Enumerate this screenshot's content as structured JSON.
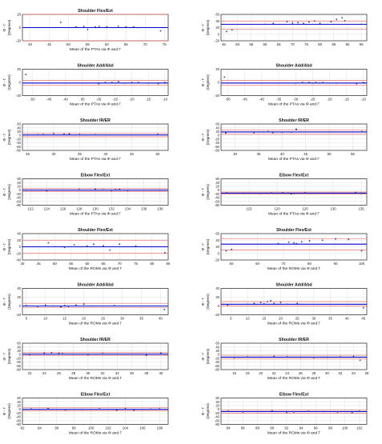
{
  "chart_data": [
    {
      "type": "scatter",
      "title": "Shoulder Flex/Ext",
      "xlabel": "Mean of the PTAs via Φ and Γ",
      "ylabel": "(Degrees)",
      "ysub": "Φ - Γ",
      "xlim": [
        38,
        76
      ],
      "xticks": [
        40,
        45,
        50,
        55,
        60,
        65,
        70,
        75
      ],
      "ylim": [
        -20,
        20
      ],
      "yticks": [
        -20,
        0,
        20
      ],
      "mean": 0,
      "loa": [
        20,
        -20
      ],
      "points": [
        [
          42,
          0
        ],
        [
          48,
          8
        ],
        [
          52,
          1
        ],
        [
          54,
          2
        ],
        [
          55,
          -3
        ],
        [
          57,
          1
        ],
        [
          58,
          2
        ],
        [
          60,
          1
        ],
        [
          62,
          0
        ],
        [
          63,
          2
        ],
        [
          65,
          1
        ],
        [
          67,
          1
        ],
        [
          68,
          0
        ],
        [
          74,
          -5
        ]
      ]
    },
    {
      "type": "scatter",
      "title": "",
      "xlabel": "",
      "ylabel": "(Degrees)",
      "ysub": "Φ - Γ",
      "xlim": [
        44,
        97
      ],
      "xticks": [
        45,
        50,
        55,
        60,
        65,
        70,
        75,
        80,
        85,
        90,
        95
      ],
      "ylim": [
        -20,
        60
      ],
      "yticks": [
        -20,
        0,
        20,
        40,
        60
      ],
      "mean": 30,
      "loa": [
        40,
        15
      ],
      "points": [
        [
          46,
          8
        ],
        [
          48,
          13
        ],
        [
          60,
          30
        ],
        [
          63,
          33
        ],
        [
          68,
          38
        ],
        [
          70,
          34
        ],
        [
          72,
          35
        ],
        [
          74,
          33
        ],
        [
          76,
          37
        ],
        [
          78,
          40
        ],
        [
          80,
          33
        ],
        [
          84,
          38
        ],
        [
          86,
          45
        ],
        [
          88,
          50
        ],
        [
          89,
          41
        ],
        [
          95,
          30
        ]
      ]
    },
    {
      "type": "scatter",
      "title": "Shoulder Add/Abd",
      "xlabel": "Mean of the PTAs via Φ and Γ",
      "ylabel": "(Degrees)",
      "ysub": "Φ - Γ",
      "xlim": [
        -53,
        -9
      ],
      "xticks": [
        -50,
        -45,
        -40,
        -35,
        -30,
        -25,
        -20,
        -15,
        -10
      ],
      "ylim": [
        -20,
        20
      ],
      "yticks": [
        -20,
        0,
        20
      ],
      "mean": -1,
      "loa": [
        3,
        -4
      ],
      "points": [
        [
          -52,
          12
        ],
        [
          -30,
          -2
        ],
        [
          -28,
          0
        ],
        [
          -26,
          0
        ],
        [
          -24,
          1
        ],
        [
          -22,
          -1
        ],
        [
          -20,
          0
        ],
        [
          -18,
          0
        ],
        [
          -15,
          -1
        ],
        [
          -12,
          -2
        ],
        [
          -10,
          0
        ]
      ]
    },
    {
      "type": "scatter",
      "title": "Shoulder Add/Abd",
      "xlabel": "Mean of the PTAs via Φ and Γ",
      "ylabel": "(Degrees)",
      "ysub": "Φ - Γ",
      "xlim": [
        -52,
        -9
      ],
      "xticks": [
        -50,
        -45,
        -40,
        -35,
        -30,
        -25,
        -20,
        -15,
        -10
      ],
      "ylim": [
        -20,
        20
      ],
      "yticks": [
        -20,
        0,
        20
      ],
      "mean": -1,
      "loa": [
        3,
        -4
      ],
      "points": [
        [
          -51,
          8
        ],
        [
          -30,
          -1
        ],
        [
          -28,
          0
        ],
        [
          -26,
          0
        ],
        [
          -25,
          -1
        ],
        [
          -24,
          0
        ],
        [
          -23,
          -1
        ],
        [
          -22,
          0
        ],
        [
          -18,
          -1
        ],
        [
          -12,
          -2
        ],
        [
          -10,
          0
        ]
      ]
    },
    {
      "type": "scatter",
      "title": "Shoulder IR/ER",
      "xlabel": "Mean of the PTAs via Φ and Γ",
      "ylabel": "(Degrees)",
      "ysub": "Φ - Γ",
      "xlim": [
        24,
        52
      ],
      "xticks": [
        25,
        30,
        35,
        40,
        45,
        50
      ],
      "ylim": [
        -80,
        60
      ],
      "yticks": [
        -80,
        -60,
        -40,
        -20,
        0,
        20,
        40,
        60
      ],
      "mean": 2,
      "loa": [
        12,
        -8
      ],
      "points": [
        [
          25,
          2
        ],
        [
          27,
          3
        ],
        [
          28,
          4
        ],
        [
          30,
          10
        ],
        [
          32,
          6
        ],
        [
          33,
          8
        ],
        [
          35,
          4
        ],
        [
          36,
          2
        ],
        [
          38,
          3
        ],
        [
          50,
          5
        ]
      ]
    },
    {
      "type": "scatter",
      "title": "Shoulder IR/ER",
      "xlabel": "Mean of the PTAs via Φ and Γ",
      "ylabel": "(Degrees)",
      "ysub": "Φ - Γ",
      "xlim": [
        27,
        58
      ],
      "xticks": [
        30,
        35,
        40,
        45,
        50,
        55
      ],
      "ylim": [
        -80,
        60
      ],
      "yticks": [
        -80,
        -60,
        -40,
        -20,
        0,
        20,
        40,
        60
      ],
      "mean": 18,
      "loa": [
        28,
        6
      ],
      "points": [
        [
          28,
          12
        ],
        [
          34,
          14
        ],
        [
          36,
          18
        ],
        [
          37,
          20
        ],
        [
          38,
          14
        ],
        [
          40,
          16
        ],
        [
          42,
          16
        ],
        [
          43,
          33
        ],
        [
          43,
          30
        ],
        [
          45,
          18
        ],
        [
          50,
          18
        ],
        [
          57,
          20
        ]
      ]
    },
    {
      "type": "scatter",
      "title": "Elbow Flex/Ext",
      "xlabel": "Mean of the PTAs via Φ and Γ",
      "ylabel": "(Degrees)",
      "ysub": "Φ - Γ",
      "xlim": [
        121,
        139
      ],
      "xticks": [
        122,
        124,
        126,
        128,
        130,
        132,
        134,
        136,
        138
      ],
      "ylim": [
        -80,
        60
      ],
      "yticks": [
        -80,
        -60,
        -40,
        -20,
        0,
        20,
        40,
        60
      ],
      "mean": 0,
      "loa": [
        8,
        -8
      ],
      "points": [
        [
          121.5,
          0
        ],
        [
          124,
          -3
        ],
        [
          128,
          2
        ],
        [
          130,
          6
        ],
        [
          131,
          1
        ],
        [
          132,
          -2
        ],
        [
          132.5,
          2
        ],
        [
          133,
          3
        ],
        [
          134,
          -2
        ],
        [
          138,
          0
        ]
      ]
    },
    {
      "type": "scatter",
      "title": "Elbow Flex/Ext",
      "xlabel": "Mean of the PTAs via Φ and Γ",
      "ylabel": "(Degrees)",
      "ysub": "Φ - Γ",
      "xlim": [
        110,
        136
      ],
      "xticks": [
        115,
        120,
        125,
        130,
        135
      ],
      "ylim": [
        -80,
        60
      ],
      "yticks": [
        -80,
        -60,
        -40,
        -20,
        0,
        20,
        40,
        60
      ],
      "mean": -16,
      "loa": [
        -10,
        -22
      ],
      "points": [
        [
          111,
          -15
        ],
        [
          114,
          -16
        ],
        [
          117,
          -17
        ],
        [
          119,
          -15
        ],
        [
          121,
          -14
        ],
        [
          122,
          -16
        ],
        [
          122.5,
          -20
        ],
        [
          123,
          -17
        ],
        [
          125,
          -14
        ],
        [
          134,
          -12
        ],
        [
          135,
          -16
        ]
      ]
    },
    {
      "type": "scatter",
      "title": "Shoulder Flex/Ext",
      "xlabel": "Mean of the ROMs via Φ and Γ",
      "ylabel": "(Degrees)",
      "ysub": "Φ - Γ",
      "xlim": [
        40,
        85
      ],
      "xticks": [
        40,
        45,
        50,
        55,
        60,
        65,
        70,
        75,
        80,
        85
      ],
      "ylim": [
        -40,
        40
      ],
      "yticks": [
        -40,
        -20,
        0,
        20,
        40
      ],
      "mean": 0,
      "loa": [
        20,
        -20
      ],
      "points": [
        [
          40,
          0
        ],
        [
          48,
          12
        ],
        [
          53,
          -2
        ],
        [
          56,
          6
        ],
        [
          58,
          0
        ],
        [
          60,
          2
        ],
        [
          62,
          8
        ],
        [
          65,
          3
        ],
        [
          67,
          -10
        ],
        [
          70,
          8
        ],
        [
          75,
          2
        ],
        [
          84,
          -18
        ]
      ]
    },
    {
      "type": "scatter",
      "title": "Shoulder Flex/Ext",
      "xlabel": "Mean of the ROMs via Φ and Γ",
      "ylabel": "(Degrees)",
      "ysub": "Φ - Γ",
      "xlim": [
        46,
        102
      ],
      "xticks": [
        50,
        60,
        70,
        80,
        90,
        100
      ],
      "ylim": [
        -20,
        60
      ],
      "yticks": [
        -20,
        0,
        20,
        40,
        60
      ],
      "mean": 28,
      "loa": [
        45,
        10
      ],
      "points": [
        [
          48,
          8
        ],
        [
          50,
          12
        ],
        [
          68,
          30
        ],
        [
          72,
          34
        ],
        [
          74,
          32
        ],
        [
          75,
          30
        ],
        [
          77,
          35
        ],
        [
          80,
          38
        ],
        [
          85,
          40
        ],
        [
          90,
          44
        ],
        [
          95,
          42
        ],
        [
          100,
          8
        ]
      ]
    },
    {
      "type": "scatter",
      "title": "Shoulder Add/Abd",
      "xlabel": "Mean of the ROMs via Φ and Γ",
      "ylabel": "(Degrees)",
      "ysub": "Φ - Γ",
      "xlim": [
        4,
        42
      ],
      "xticks": [
        5,
        10,
        15,
        20,
        25,
        30,
        35,
        40
      ],
      "ylim": [
        -20,
        40
      ],
      "yticks": [
        -20,
        0,
        20,
        40
      ],
      "mean": 0,
      "loa": [
        6,
        -4
      ],
      "points": [
        [
          5,
          1
        ],
        [
          8,
          -1
        ],
        [
          10,
          2
        ],
        [
          12,
          0
        ],
        [
          14,
          -2
        ],
        [
          15,
          1
        ],
        [
          16,
          -1
        ],
        [
          18,
          2
        ],
        [
          20,
          4
        ],
        [
          22,
          0
        ],
        [
          28,
          1
        ],
        [
          41,
          -8
        ]
      ]
    },
    {
      "type": "scatter",
      "title": "Shoulder Add/Abd",
      "xlabel": "Mean of the ROMs via Φ and Γ",
      "ylabel": "(Degrees)",
      "ysub": "Φ - Γ",
      "xlim": [
        2,
        46
      ],
      "xticks": [
        5,
        10,
        15,
        20,
        25,
        30,
        35,
        40,
        45
      ],
      "ylim": [
        -20,
        40
      ],
      "yticks": [
        -20,
        0,
        20,
        40
      ],
      "mean": 4,
      "loa": [
        10,
        0
      ],
      "points": [
        [
          4,
          2
        ],
        [
          10,
          4
        ],
        [
          12,
          6
        ],
        [
          14,
          8
        ],
        [
          15,
          5
        ],
        [
          16,
          10
        ],
        [
          17,
          12
        ],
        [
          18,
          6
        ],
        [
          20,
          8
        ],
        [
          22,
          4
        ],
        [
          25,
          6
        ],
        [
          45,
          -4
        ]
      ]
    },
    {
      "type": "scatter",
      "title": "Shoulder IR/ER",
      "xlabel": "Mean of the ROMs via Φ and Γ",
      "ylabel": "(Degrees)",
      "ysub": "Φ - Γ",
      "xlim": [
        21,
        41
      ],
      "xticks": [
        22,
        24,
        26,
        28,
        30,
        32,
        34,
        36,
        38,
        40
      ],
      "ylim": [
        -80,
        60
      ],
      "yticks": [
        -80,
        -60,
        -40,
        -20,
        0,
        20,
        40,
        60
      ],
      "mean": 2,
      "loa": [
        10,
        -6
      ],
      "points": [
        [
          22,
          0
        ],
        [
          24,
          8
        ],
        [
          25,
          10
        ],
        [
          26,
          6
        ],
        [
          26.5,
          4
        ],
        [
          28,
          2
        ],
        [
          30,
          0
        ],
        [
          32,
          4
        ],
        [
          34,
          2
        ],
        [
          38,
          -4
        ],
        [
          40,
          8
        ]
      ]
    },
    {
      "type": "scatter",
      "title": "Shoulder IR/ER",
      "xlabel": "Mean of the ROMs via Φ and Γ",
      "ylabel": "(Degrees)",
      "ysub": "Φ - Γ",
      "xlim": [
        14,
        36
      ],
      "xticks": [
        16,
        18,
        20,
        22,
        24,
        26,
        28,
        30,
        32,
        34,
        36
      ],
      "ylim": [
        -80,
        60
      ],
      "yticks": [
        -80,
        -60,
        -40,
        -20,
        0,
        20,
        40,
        60
      ],
      "mean": -14,
      "loa": [
        -4,
        -24
      ],
      "points": [
        [
          16,
          -16
        ],
        [
          18,
          -12
        ],
        [
          22,
          -10
        ],
        [
          24,
          -12
        ],
        [
          26,
          -14
        ],
        [
          28,
          -16
        ],
        [
          30,
          -14
        ],
        [
          32,
          -12
        ],
        [
          34,
          -10
        ],
        [
          35,
          -30
        ]
      ]
    },
    {
      "type": "scatter",
      "title": "Elbow Flex/Ext",
      "xlabel": "Mean of the ROMs via Φ and Γ",
      "ylabel": "(Degrees)",
      "ysub": "Φ - Γ",
      "xlim": [
        92,
        109
      ],
      "xticks": [
        92,
        94,
        96,
        98,
        100,
        102,
        104,
        106,
        108
      ],
      "ylim": [
        -80,
        60
      ],
      "yticks": [
        -80,
        -60,
        -40,
        -20,
        0,
        20,
        40,
        60
      ],
      "mean": 0,
      "loa": [
        8,
        -8
      ],
      "points": [
        [
          93,
          2
        ],
        [
          95,
          4
        ],
        [
          97,
          -2
        ],
        [
          99,
          0
        ],
        [
          101,
          2
        ],
        [
          103,
          -4
        ],
        [
          104,
          3
        ],
        [
          105,
          -6
        ],
        [
          107,
          1
        ],
        [
          108,
          2
        ]
      ]
    },
    {
      "type": "scatter",
      "title": "Elbow Flex/Ext",
      "xlabel": "Mean of the ROMs via Φ and Γ",
      "ylabel": "(Degrees)",
      "ysub": "Φ - Γ",
      "xlim": [
        83,
        103
      ],
      "xticks": [
        84,
        86,
        88,
        90,
        92,
        94,
        96,
        98,
        100,
        102
      ],
      "ylim": [
        -80,
        60
      ],
      "yticks": [
        -80,
        -60,
        -40,
        -20,
        0,
        20,
        40,
        60
      ],
      "mean": -12,
      "loa": [
        -4,
        -20
      ],
      "points": [
        [
          84,
          -10
        ],
        [
          86,
          -14
        ],
        [
          88,
          -12
        ],
        [
          90,
          -8
        ],
        [
          92,
          -16
        ],
        [
          93,
          -14
        ],
        [
          95,
          -10
        ],
        [
          97,
          -12
        ],
        [
          99,
          -14
        ],
        [
          101,
          -18
        ],
        [
          102,
          -10
        ]
      ]
    }
  ],
  "colors": {
    "points": "#1f3f99",
    "mean_line": "#0000cc",
    "upper_line": "#e06a6a",
    "lower_line": "#e06a6a",
    "axis": "#000000",
    "grid": "#d8d8d8"
  }
}
